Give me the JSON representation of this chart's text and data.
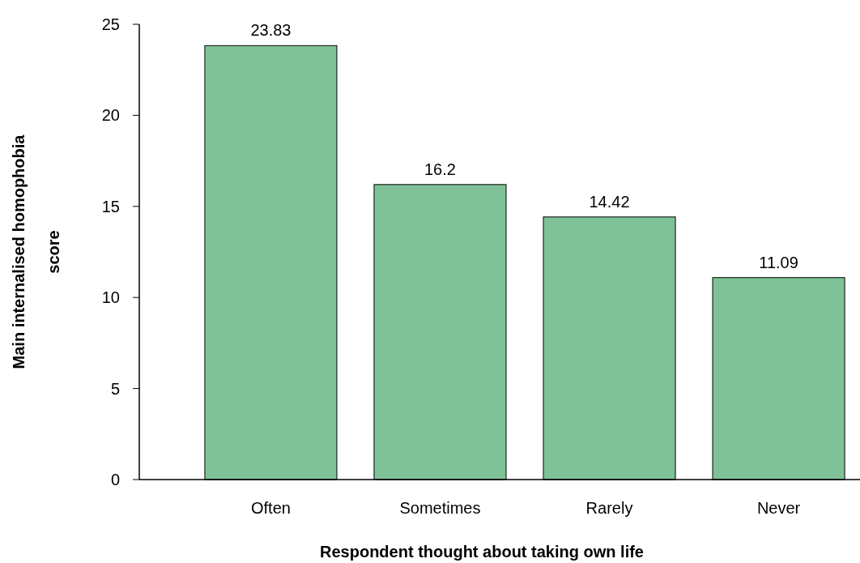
{
  "chart_data": {
    "type": "bar",
    "xlabel": "Respondent thought about taking own life",
    "ylabel": "Main internalised homophobia score",
    "categories": [
      "Often",
      "Sometimes",
      "Rarely",
      "Never"
    ],
    "values": [
      23.83,
      16.2,
      14.42,
      11.09
    ],
    "color": "#7fc297",
    "ylim": [
      0,
      25
    ],
    "yticks": [
      0,
      5,
      10,
      15,
      20,
      25
    ],
    "data_labels": true,
    "grid": false
  }
}
